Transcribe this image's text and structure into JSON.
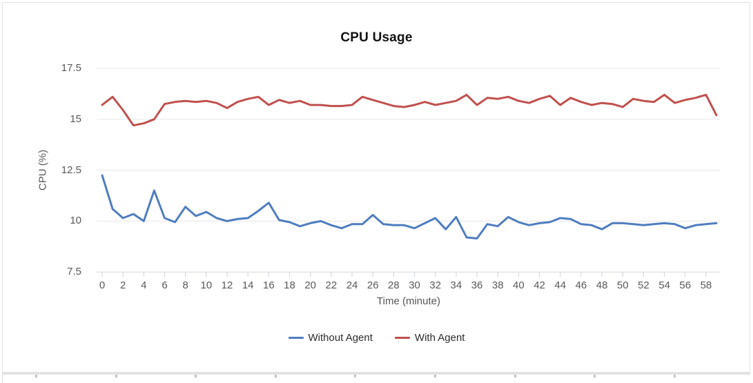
{
  "chart_data": {
    "type": "line",
    "title": "CPU Usage",
    "xlabel": "Time (minute)",
    "ylabel": "CPU (%)",
    "x": [
      0,
      1,
      2,
      3,
      4,
      5,
      6,
      7,
      8,
      9,
      10,
      11,
      12,
      13,
      14,
      15,
      16,
      17,
      18,
      19,
      20,
      21,
      22,
      23,
      24,
      25,
      26,
      27,
      28,
      29,
      30,
      31,
      32,
      33,
      34,
      35,
      36,
      37,
      38,
      39,
      40,
      41,
      42,
      43,
      44,
      45,
      46,
      47,
      48,
      49,
      50,
      51,
      52,
      53,
      54,
      55,
      56,
      57,
      58,
      59
    ],
    "x_tick_labels": [
      "0",
      "2",
      "4",
      "6",
      "8",
      "10",
      "12",
      "14",
      "16",
      "18",
      "20",
      "22",
      "24",
      "26",
      "28",
      "30",
      "32",
      "34",
      "36",
      "38",
      "40",
      "42",
      "44",
      "46",
      "48",
      "50",
      "52",
      "54",
      "56",
      "58"
    ],
    "y_ticks": [
      7.5,
      10,
      12.5,
      15,
      17.5
    ],
    "y_tick_labels": [
      "7.5",
      "10",
      "12.5",
      "15",
      "17.5"
    ],
    "xlim": [
      0,
      59
    ],
    "ylim": [
      7.5,
      17.5
    ],
    "grid": "horizontal",
    "legend_position": "bottom",
    "series": [
      {
        "name": "Without Agent",
        "color": "#4e7dbf",
        "values": [
          12.25,
          10.6,
          10.15,
          10.35,
          10.0,
          11.5,
          10.15,
          9.95,
          10.7,
          10.25,
          10.45,
          10.15,
          10.0,
          10.1,
          10.15,
          10.5,
          10.9,
          10.05,
          9.95,
          9.75,
          9.9,
          10.0,
          9.8,
          9.65,
          9.85,
          9.85,
          10.3,
          9.85,
          9.8,
          9.8,
          9.65,
          9.9,
          10.15,
          9.6,
          10.2,
          9.2,
          9.15,
          9.85,
          9.75,
          10.2,
          9.95,
          9.8,
          9.9,
          9.95,
          10.15,
          10.1,
          9.85,
          9.8,
          9.6,
          9.9,
          9.9,
          9.85,
          9.8,
          9.85,
          9.9,
          9.85,
          9.65,
          9.8,
          9.85,
          9.9
        ]
      },
      {
        "name": "With Agent",
        "color": "#c0504d",
        "values": [
          15.7,
          16.1,
          15.45,
          14.7,
          14.8,
          15.0,
          15.75,
          15.85,
          15.9,
          15.85,
          15.9,
          15.8,
          15.55,
          15.85,
          16.0,
          16.1,
          15.7,
          15.95,
          15.8,
          15.9,
          15.7,
          15.7,
          15.65,
          15.65,
          15.7,
          16.1,
          15.95,
          15.8,
          15.65,
          15.6,
          15.7,
          15.85,
          15.7,
          15.8,
          15.9,
          16.2,
          15.7,
          16.05,
          16.0,
          16.1,
          15.9,
          15.8,
          16.0,
          16.15,
          15.7,
          16.05,
          15.85,
          15.7,
          15.8,
          15.75,
          15.6,
          16.0,
          15.9,
          15.85,
          16.2,
          15.8,
          15.95,
          16.05,
          16.2,
          15.2
        ]
      }
    ]
  }
}
